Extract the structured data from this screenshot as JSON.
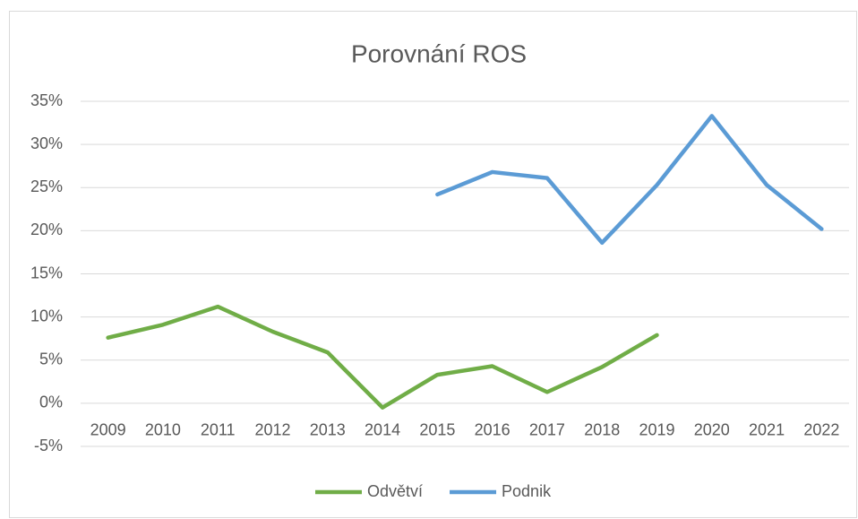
{
  "chart_data": {
    "type": "line",
    "title": "Porovnání ROS",
    "categories": [
      "2009",
      "2010",
      "2011",
      "2012",
      "2013",
      "2014",
      "2015",
      "2016",
      "2017",
      "2018",
      "2019",
      "2020",
      "2021",
      "2022"
    ],
    "series": [
      {
        "name": "Odvětví",
        "color": "#70ad47",
        "values": [
          7.6,
          9.1,
          11.2,
          8.3,
          5.9,
          -0.5,
          3.3,
          4.3,
          1.3,
          4.2,
          7.9,
          null,
          null,
          null
        ]
      },
      {
        "name": "Podnik",
        "color": "#5b9bd5",
        "values": [
          null,
          null,
          null,
          null,
          null,
          null,
          24.2,
          26.8,
          26.1,
          18.6,
          25.3,
          33.3,
          25.3,
          20.2
        ]
      }
    ],
    "ylim": [
      -5,
      35
    ],
    "yticks": [
      {
        "value": -5,
        "label": "-5%"
      },
      {
        "value": 0,
        "label": "0%"
      },
      {
        "value": 5,
        "label": "5%"
      },
      {
        "value": 10,
        "label": "10%"
      },
      {
        "value": 15,
        "label": "15%"
      },
      {
        "value": 20,
        "label": "20%"
      },
      {
        "value": 25,
        "label": "25%"
      },
      {
        "value": 30,
        "label": "30%"
      },
      {
        "value": 35,
        "label": "35%"
      }
    ],
    "grid": true,
    "legend": "bottom"
  }
}
